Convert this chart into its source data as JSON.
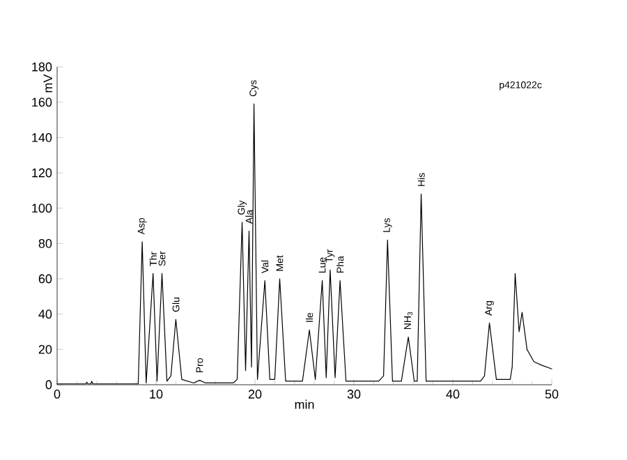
{
  "chart_data": {
    "type": "line",
    "xlabel": "min",
    "ylabel": "mV",
    "xlim": [
      0,
      50
    ],
    "xticks": [
      0,
      10,
      20,
      30,
      40,
      50
    ],
    "ylim": [
      0,
      180
    ],
    "yticks": [
      0,
      20,
      40,
      60,
      80,
      100,
      120,
      140,
      160,
      180
    ],
    "color": "#000000",
    "x": [
      0,
      2.9,
      3.0,
      3.1,
      3.4,
      3.5,
      3.6,
      8.2,
      8.6,
      9.0,
      9.7,
      10.1,
      10.6,
      11.1,
      11.5,
      12.0,
      12.6,
      13.8,
      14.4,
      15.0,
      17.8,
      18.2,
      18.7,
      19.05,
      19.4,
      19.65,
      19.9,
      20.25,
      21.0,
      21.5,
      22.0,
      22.5,
      23.1,
      24.8,
      25.5,
      26.1,
      26.8,
      27.2,
      27.6,
      28.1,
      28.6,
      29.2,
      32.5,
      33.0,
      33.4,
      33.9,
      34.8,
      35.5,
      36.1,
      36.4,
      36.8,
      37.3,
      42.8,
      43.2,
      43.7,
      44.4,
      45.8,
      46.0,
      46.3,
      46.7,
      47.0,
      47.5,
      48.2,
      49.0,
      50
    ],
    "values": [
      0.5,
      0.5,
      1.5,
      0.5,
      0.5,
      2,
      0.5,
      0.5,
      81,
      1,
      63,
      2,
      63,
      2,
      5,
      37,
      3,
      1,
      2.5,
      1,
      1,
      3,
      92,
      8,
      87,
      10,
      159,
      3,
      59,
      3,
      3,
      60,
      2,
      2,
      31,
      3,
      59,
      4,
      65,
      4,
      59,
      2,
      2,
      5,
      82,
      2,
      2,
      27,
      2,
      2,
      108,
      2,
      2,
      5,
      35,
      3,
      3,
      10,
      63,
      30,
      41,
      20,
      13,
      11,
      9
    ],
    "annotations": [
      {
        "text": "Asp",
        "x": 8.6,
        "y": 81
      },
      {
        "text": "Thr",
        "x": 9.7,
        "y": 63
      },
      {
        "text": "Ser",
        "x": 10.6,
        "y": 63
      },
      {
        "text": "Glu",
        "x": 12.0,
        "y": 37
      },
      {
        "text": "Pro",
        "x": 14.4,
        "y": 2.5
      },
      {
        "text": "Gly",
        "x": 18.7,
        "y": 92
      },
      {
        "text": "Ala",
        "x": 19.4,
        "y": 87
      },
      {
        "text": "Cys",
        "x": 19.9,
        "y": 159
      },
      {
        "text": "Val",
        "x": 21.0,
        "y": 59
      },
      {
        "text": "Met",
        "x": 22.5,
        "y": 60
      },
      {
        "text": "Ile",
        "x": 25.5,
        "y": 31
      },
      {
        "text": "Lue",
        "x": 26.8,
        "y": 59
      },
      {
        "text": "Tyr",
        "x": 27.6,
        "y": 65
      },
      {
        "text": "Pha",
        "x": 28.6,
        "y": 59
      },
      {
        "text": "Lys",
        "x": 33.4,
        "y": 82
      },
      {
        "text": "NH$_{3}$",
        "x": 35.5,
        "y": 27
      },
      {
        "text": "His",
        "x": 36.8,
        "y": 108
      },
      {
        "text": "Arg",
        "x": 43.7,
        "y": 35
      },
      "p421022c"
    ]
  }
}
